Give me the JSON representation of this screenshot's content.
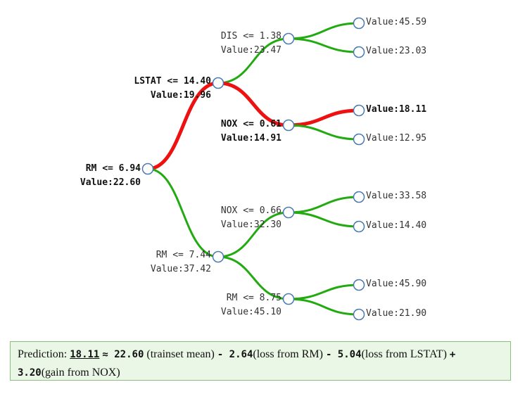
{
  "colors": {
    "path": "#ee1111",
    "branch": "#22aa11",
    "node_stroke": "#4a7ab0"
  },
  "nodes": {
    "root": {
      "line1": "RM <= 6.94",
      "line2": "Value:22.60",
      "highlight": true
    },
    "n1": {
      "line1": "LSTAT <= 14.40",
      "line2": "Value:19.96",
      "highlight": true
    },
    "n2": {
      "line1": "RM <= 7.44",
      "line2": "Value:37.42",
      "highlight": false
    },
    "n11": {
      "line1": "DIS <= 1.38",
      "line2": "Value:23.47",
      "highlight": false
    },
    "n12": {
      "line1": "NOX <= 0.61",
      "line2": "Value:14.91",
      "highlight": true
    },
    "n21": {
      "line1": "NOX <= 0.66",
      "line2": "Value:32.30",
      "highlight": false
    },
    "n22": {
      "line1": "RM <= 8.75",
      "line2": "Value:45.10",
      "highlight": false
    },
    "l1": {
      "line1": "Value:45.59",
      "highlight": false
    },
    "l2": {
      "line1": "Value:23.03",
      "highlight": false
    },
    "l3": {
      "line1": "Value:18.11",
      "highlight": true
    },
    "l4": {
      "line1": "Value:12.95",
      "highlight": false
    },
    "l5": {
      "line1": "Value:33.58",
      "highlight": false
    },
    "l6": {
      "line1": "Value:14.40",
      "highlight": false
    },
    "l7": {
      "line1": "Value:45.90",
      "highlight": false
    },
    "l8": {
      "line1": "Value:21.90",
      "highlight": false
    }
  },
  "prediction": {
    "label": "Prediction:",
    "value": "18.11",
    "approx": "≈ 22.60",
    "mean_text": "(trainset mean)",
    "t1_num": "- 2.64",
    "t1_text": "(loss from RM)",
    "t2_num": "- 5.04",
    "t2_text": "(loss from LSTAT)",
    "t3_num": "+ 3.20",
    "t3_text": "(gain from NOX)"
  }
}
